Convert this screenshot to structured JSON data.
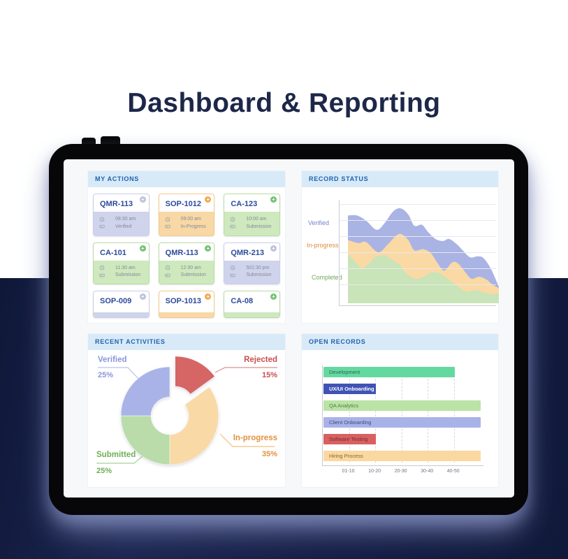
{
  "page": {
    "title": "Dashboard & Reporting"
  },
  "my_actions": {
    "title": "MY ACTIONS",
    "cards": [
      {
        "id": "QMR-113",
        "time": "08:30 am",
        "status": "Verified",
        "theme": "lavender",
        "plus": "gray"
      },
      {
        "id": "SOP-1012",
        "time": "09:00 am",
        "status": "In-Progress",
        "theme": "orange",
        "plus": "orange"
      },
      {
        "id": "CA-123",
        "time": "10:00 am",
        "status": "Submission",
        "theme": "green",
        "plus": "green"
      },
      {
        "id": "CA-101",
        "time": "11:30 am",
        "status": "Submission",
        "theme": "green",
        "plus": "green"
      },
      {
        "id": "QMR-113",
        "time": "12:30 am",
        "status": "Submission",
        "theme": "green",
        "plus": "green"
      },
      {
        "id": "QMR-213",
        "time": "501:30 pm",
        "status": "Submission",
        "theme": "lavender",
        "plus": "gray"
      },
      {
        "id": "SOP-009",
        "time": null,
        "status": null,
        "theme": "lavender",
        "plus": "gray"
      },
      {
        "id": "SOP-1013",
        "time": null,
        "status": null,
        "theme": "orange",
        "plus": "orange"
      },
      {
        "id": "CA-08",
        "time": null,
        "status": null,
        "theme": "green",
        "plus": "green"
      }
    ]
  },
  "record_status": {
    "title": "RECORD STATUS",
    "chart_data": {
      "type": "area",
      "stacked": true,
      "grid": "horizontal",
      "ylim": [
        0,
        100
      ],
      "x_range": [
        0,
        100
      ],
      "series": [
        {
          "name": "Verified",
          "color": "#a9b3e4",
          "label_color": "#7583c9",
          "points": [
            [
              0,
              86
            ],
            [
              6,
              86
            ],
            [
              12,
              81
            ],
            [
              19,
              72
            ],
            [
              24,
              78
            ],
            [
              30,
              90
            ],
            [
              35,
              93
            ],
            [
              40,
              87
            ],
            [
              44,
              76
            ],
            [
              49,
              77
            ],
            [
              53,
              70
            ],
            [
              58,
              63
            ],
            [
              63,
              61
            ],
            [
              67,
              63
            ],
            [
              72,
              58
            ],
            [
              76,
              52
            ],
            [
              81,
              45
            ],
            [
              86,
              46
            ],
            [
              90,
              44
            ],
            [
              95,
              33
            ],
            [
              100,
              16
            ]
          ]
        },
        {
          "name": "In-progress",
          "color": "#fbd9a4",
          "label_color": "#e28a3b",
          "points": [
            [
              0,
              62
            ],
            [
              7,
              59
            ],
            [
              12,
              60
            ],
            [
              20,
              50
            ],
            [
              26,
              57
            ],
            [
              31,
              65
            ],
            [
              35,
              68
            ],
            [
              40,
              62
            ],
            [
              44,
              52
            ],
            [
              50,
              53
            ],
            [
              55,
              49
            ],
            [
              60,
              38
            ],
            [
              64,
              32
            ],
            [
              69,
              40
            ],
            [
              73,
              39
            ],
            [
              78,
              30
            ],
            [
              82,
              24
            ],
            [
              87,
              26
            ],
            [
              92,
              23
            ],
            [
              96,
              18
            ],
            [
              100,
              15
            ]
          ]
        },
        {
          "name": "Completed",
          "color": "#c8e4b8",
          "label_color": "#71a55c",
          "points": [
            [
              0,
              48
            ],
            [
              6,
              39
            ],
            [
              9,
              34
            ],
            [
              14,
              39
            ],
            [
              18,
              45
            ],
            [
              24,
              47
            ],
            [
              28,
              44
            ],
            [
              34,
              38
            ],
            [
              38,
              30
            ],
            [
              43,
              25
            ],
            [
              46,
              24
            ],
            [
              50,
              26
            ],
            [
              55,
              30
            ],
            [
              60,
              30
            ],
            [
              64,
              26
            ],
            [
              69,
              21
            ],
            [
              75,
              14
            ],
            [
              79,
              11
            ],
            [
              84,
              13
            ],
            [
              89,
              11
            ],
            [
              95,
              9
            ],
            [
              100,
              10
            ]
          ]
        }
      ]
    }
  },
  "recent_activities": {
    "title": "RECENT ACTIVITIES",
    "chart_data": {
      "type": "pie",
      "donut": true,
      "start_angle": -90,
      "slices": [
        {
          "label": "Rejected",
          "value_pct": 15,
          "pct_label": "15%",
          "color": "#d66565",
          "exploded": true
        },
        {
          "label": "In-progress",
          "value_pct": 35,
          "pct_label": "35%",
          "color": "#f9d9a5",
          "exploded": false
        },
        {
          "label": "Submitted",
          "value_pct": 25,
          "pct_label": "25%",
          "color": "#b9dcaa",
          "exploded": false
        },
        {
          "label": "Verified",
          "value_pct": 25,
          "pct_label": "25%",
          "color": "#a9b3e8",
          "exploded": false
        }
      ]
    }
  },
  "open_records": {
    "title": "OPEN RECORDS",
    "chart_data": {
      "type": "bar",
      "orientation": "horizontal",
      "xlim": [
        0,
        61
      ],
      "categories": [
        "Development",
        "UX/UI Onboarding",
        "QA Analytics",
        "Client Onboarding",
        "Software Testing",
        "Hiring Process"
      ],
      "values": [
        50,
        20,
        60,
        60,
        20,
        60
      ],
      "colors": [
        "#63d9a0",
        "#4053b4",
        "#bae3a6",
        "#a9b2e8",
        "#d96060",
        "#fbd8a0"
      ],
      "label_colors": [
        "#336352",
        "#ffffff",
        "#557a44",
        "#3e4880",
        "#732d2d",
        "#8a6530"
      ],
      "label_bold": [
        false,
        true,
        false,
        false,
        false,
        false
      ],
      "x_ticks": [
        "01-10",
        "10-20",
        "20-30",
        "30-40",
        "40-50"
      ],
      "x_tick_values": [
        10,
        20,
        30,
        40,
        50
      ]
    }
  }
}
